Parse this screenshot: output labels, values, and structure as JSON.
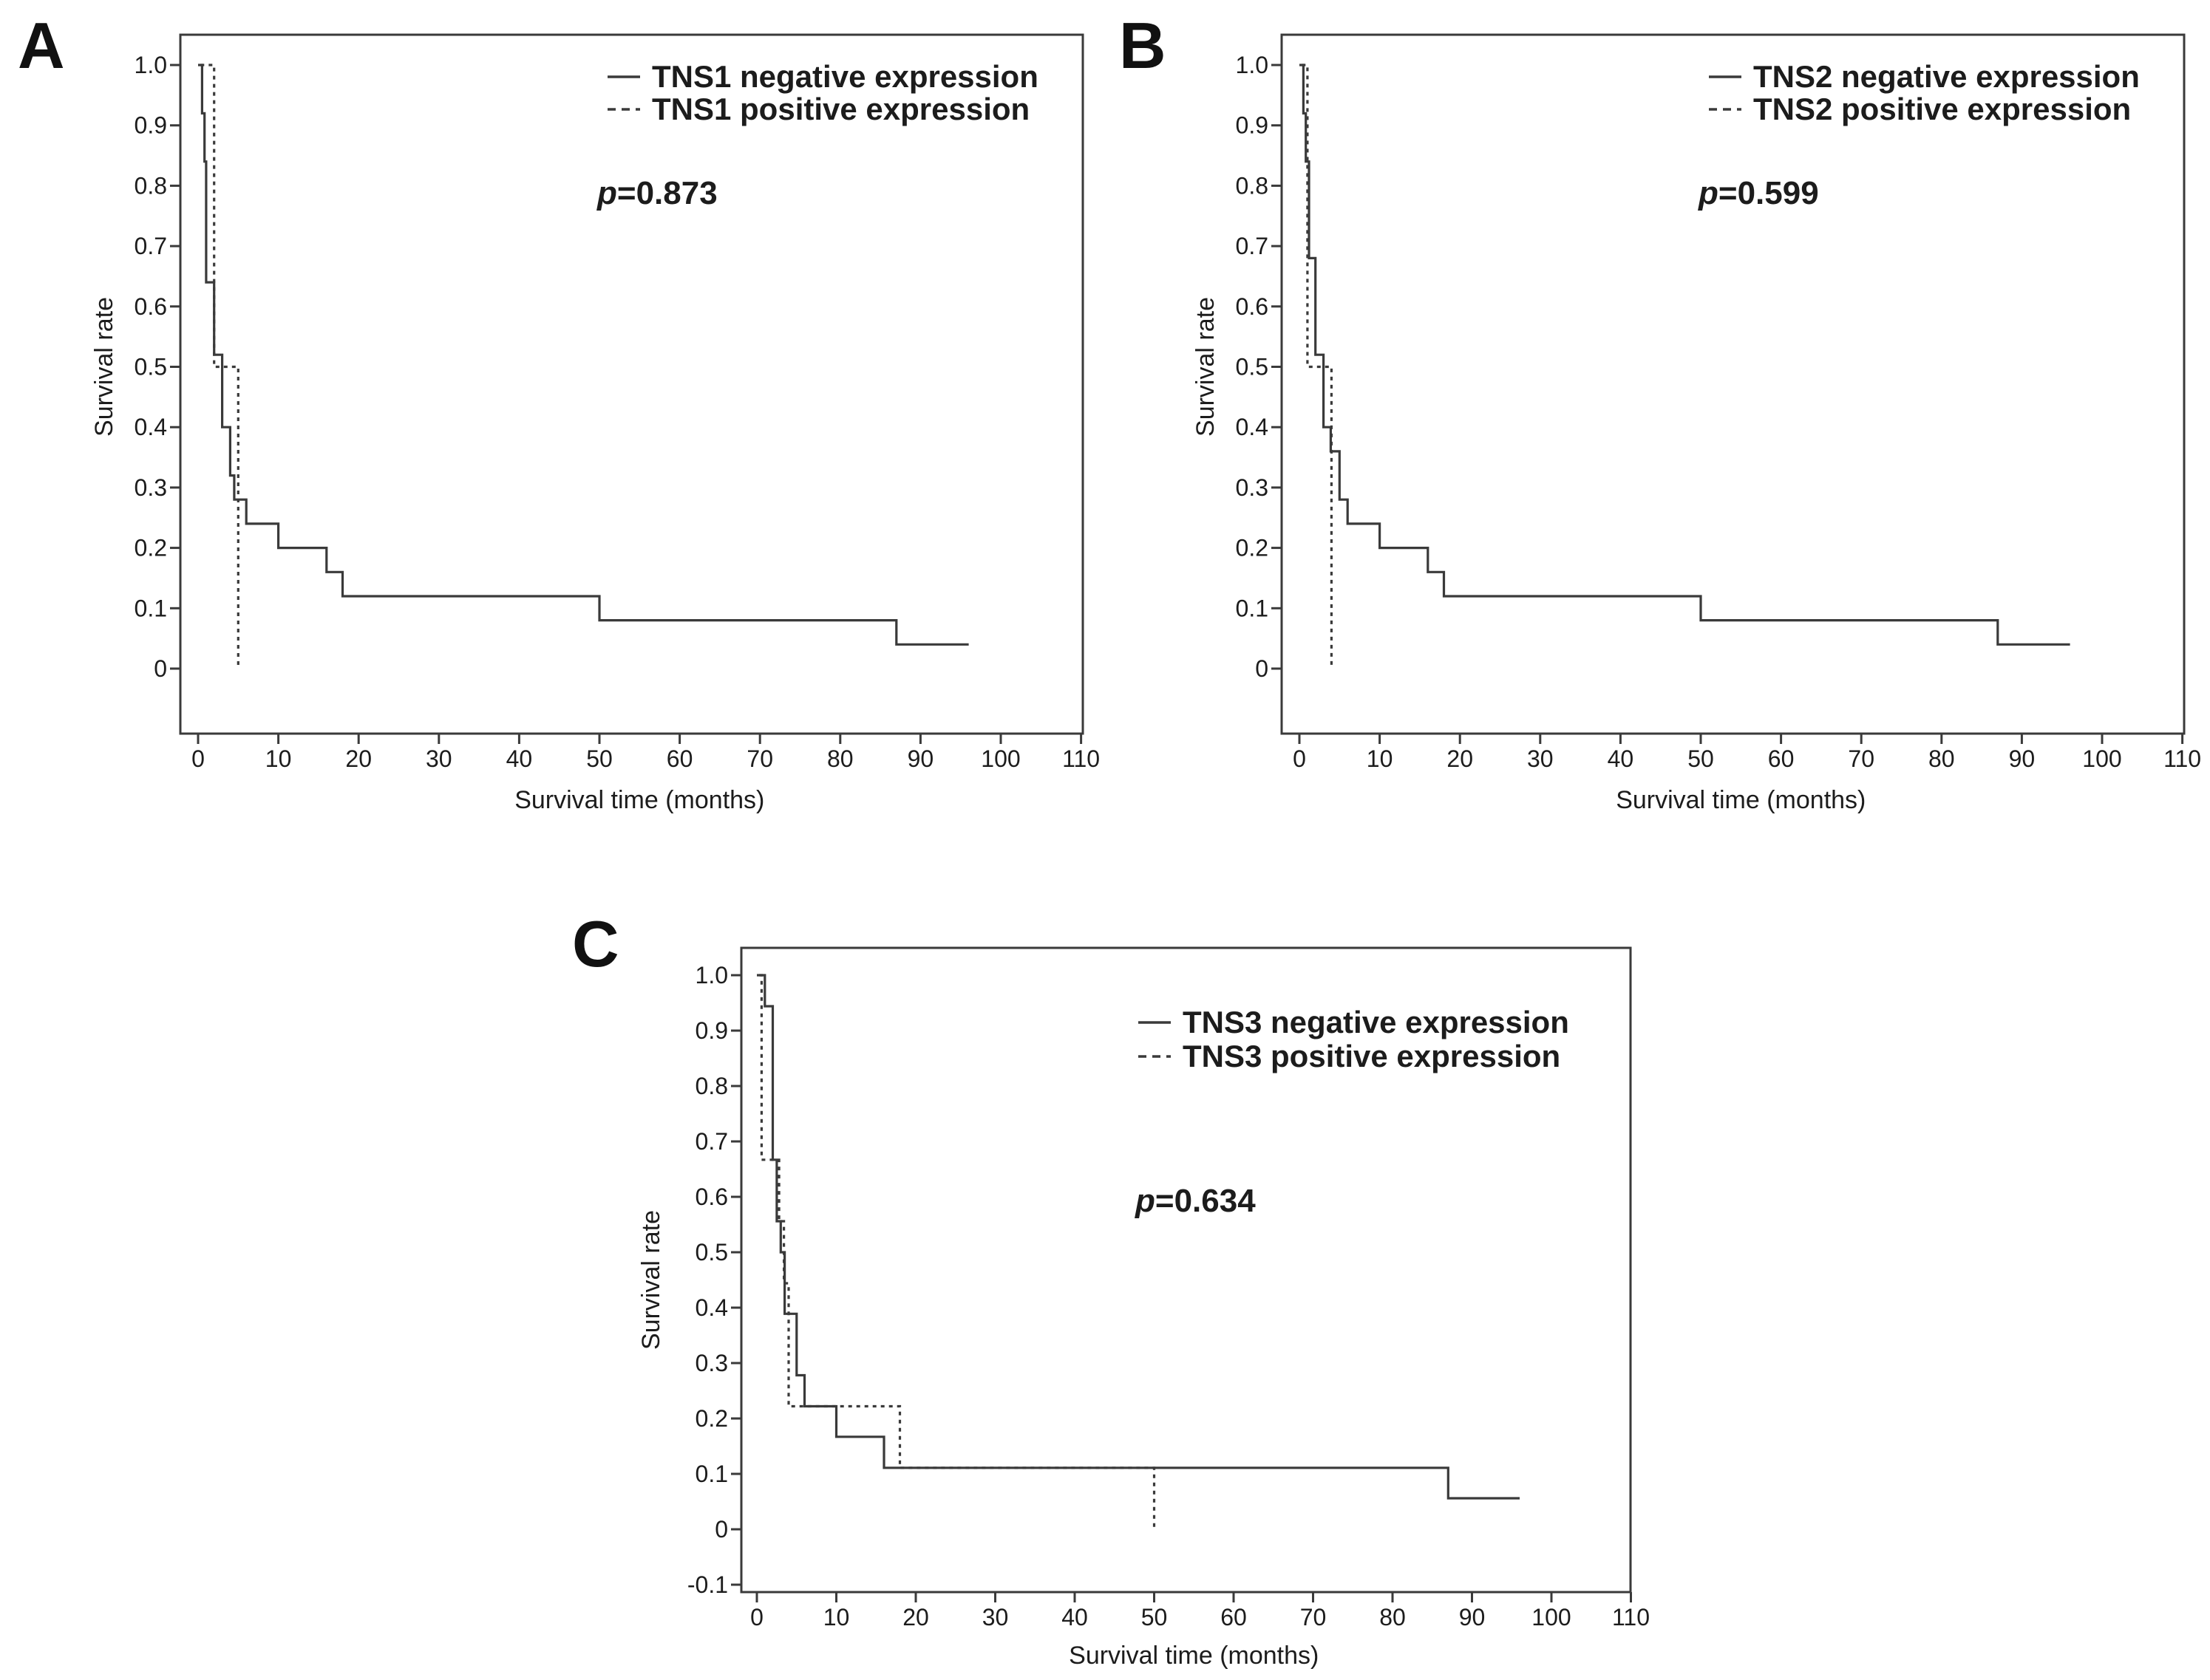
{
  "figure": {
    "description": "Kaplan-Meier survival curves for TNS1, TNS2 and TNS3 expression",
    "background": "#ffffff"
  },
  "colors": {
    "axis": "#3a3a3a",
    "curve": "#3a3a3a",
    "text": "#1c1c1c",
    "panel_letter": "#111111"
  },
  "chart_data": [
    {
      "type": "line",
      "chart_kind": "kaplan-meier-step",
      "panel_label": "A",
      "xlabel": "Survival time (months)",
      "ylabel": "Survival rate",
      "p_label": {
        "symbol": "p",
        "value": "=0.873"
      },
      "x_ticks": [
        0,
        10,
        20,
        30,
        40,
        50,
        60,
        70,
        80,
        90,
        100,
        110
      ],
      "y_ticks": [
        0,
        0.1,
        0.2,
        0.3,
        0.4,
        0.5,
        0.6,
        0.7,
        0.8,
        0.9,
        1.0
      ],
      "xlim": [
        -2.2,
        112
      ],
      "ylim": [
        -0.11,
        1.05
      ],
      "grid": false,
      "legend_position": "top-right-inside",
      "legend": [
        {
          "label": "TNS1 negative expression",
          "style": "solid"
        },
        {
          "label": "TNS1 positive expression",
          "style": "dashed"
        }
      ],
      "series": [
        {
          "name": "TNS1 negative expression",
          "style": "solid",
          "start_t": 0,
          "start_s": 1.0,
          "drops": [
            [
              0.5,
              0.92
            ],
            [
              0.8,
              0.84
            ],
            [
              1,
              0.64
            ],
            [
              2,
              0.52
            ],
            [
              3,
              0.4
            ],
            [
              4,
              0.32
            ],
            [
              4.5,
              0.28
            ],
            [
              6,
              0.24
            ],
            [
              10,
              0.2
            ],
            [
              16,
              0.16
            ],
            [
              18,
              0.12
            ],
            [
              50,
              0.08
            ],
            [
              87,
              0.04
            ]
          ],
          "end_t": 96
        },
        {
          "name": "TNS1 positive expression",
          "style": "dashed",
          "start_t": 0.3,
          "start_s": 1.0,
          "drops": [
            [
              2,
              0.5
            ],
            [
              5,
              0
            ]
          ],
          "end_t": 5
        }
      ]
    },
    {
      "type": "line",
      "chart_kind": "kaplan-meier-step",
      "panel_label": "B",
      "xlabel": "Survival time (months)",
      "ylabel": "Survival rate",
      "p_label": {
        "symbol": "p",
        "value": "=0.599"
      },
      "x_ticks": [
        0,
        10,
        20,
        30,
        40,
        50,
        60,
        70,
        80,
        90,
        100,
        110
      ],
      "y_ticks": [
        0,
        0.1,
        0.2,
        0.3,
        0.4,
        0.5,
        0.6,
        0.7,
        0.8,
        0.9,
        1.0
      ],
      "xlim": [
        -2.2,
        112
      ],
      "ylim": [
        -0.11,
        1.05
      ],
      "grid": false,
      "legend_position": "top-right-inside",
      "legend": [
        {
          "label": "TNS2 negative expression",
          "style": "solid"
        },
        {
          "label": "TNS2 positive expression",
          "style": "dashed"
        }
      ],
      "series": [
        {
          "name": "TNS2 negative expression",
          "style": "solid",
          "start_t": 0,
          "start_s": 1.0,
          "drops": [
            [
              0.5,
              0.92
            ],
            [
              0.8,
              0.84
            ],
            [
              1.2,
              0.68
            ],
            [
              2,
              0.52
            ],
            [
              3,
              0.4
            ],
            [
              3.9,
              0.36
            ],
            [
              5,
              0.28
            ],
            [
              6,
              0.24
            ],
            [
              10,
              0.2
            ],
            [
              16,
              0.16
            ],
            [
              18,
              0.12
            ],
            [
              50,
              0.08
            ],
            [
              87,
              0.04
            ]
          ],
          "end_t": 96
        },
        {
          "name": "TNS2 positive expression",
          "style": "dashed",
          "start_t": 0.3,
          "start_s": 1.0,
          "drops": [
            [
              1,
              0.5
            ],
            [
              4,
              0
            ]
          ],
          "end_t": 4
        }
      ]
    },
    {
      "type": "line",
      "chart_kind": "kaplan-meier-step",
      "panel_label": "C",
      "xlabel": "Survival time (months)",
      "ylabel": "Survival rate",
      "p_label": {
        "symbol": "p",
        "value": "=0.634"
      },
      "x_ticks": [
        0,
        10,
        20,
        30,
        40,
        50,
        60,
        70,
        80,
        90,
        100,
        110
      ],
      "y_ticks": [
        -0.1,
        0,
        0.1,
        0.2,
        0.3,
        0.4,
        0.5,
        0.6,
        0.7,
        0.8,
        0.9,
        1.0
      ],
      "xlim": [
        -2.2,
        112
      ],
      "ylim": [
        -0.113,
        1.05
      ],
      "grid": false,
      "legend_position": "top-right-inside",
      "legend": [
        {
          "label": "TNS3 negative expression",
          "style": "solid"
        },
        {
          "label": "TNS3 positive expression",
          "style": "dashed"
        }
      ],
      "series": [
        {
          "name": "TNS3 negative expression",
          "style": "solid",
          "start_t": 0,
          "start_s": 1.0,
          "drops": [
            [
              1,
              0.944
            ],
            [
              2,
              0.667
            ],
            [
              2.5,
              0.556
            ],
            [
              3,
              0.5
            ],
            [
              3.5,
              0.389
            ],
            [
              5,
              0.278
            ],
            [
              6,
              0.222
            ],
            [
              10,
              0.167
            ],
            [
              16,
              0.111
            ],
            [
              87,
              0.056
            ]
          ],
          "end_t": 96
        },
        {
          "name": "TNS3 positive expression",
          "style": "dashed",
          "start_t": 0.3,
          "start_s": 1.0,
          "drops": [
            [
              0.6,
              0.667
            ],
            [
              2.8,
              0.556
            ],
            [
              3.4,
              0.444
            ],
            [
              4,
              0.222
            ],
            [
              18,
              0.111
            ],
            [
              50,
              0
            ]
          ],
          "end_t": 50
        }
      ]
    }
  ]
}
